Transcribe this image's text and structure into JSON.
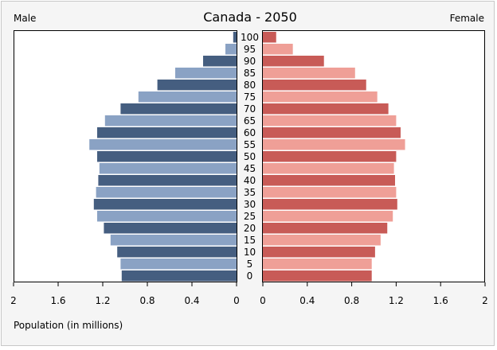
{
  "chart_data": {
    "type": "bar",
    "title": "Canada - 2050",
    "left_label": "Male",
    "right_label": "Female",
    "xlabel": "Population (in millions)",
    "xlim": [
      0,
      2
    ],
    "x_ticks": [
      "2",
      "1.6",
      "1.2",
      "0.8",
      "0.4",
      "0",
      "0",
      "0.4",
      "0.8",
      "1.2",
      "1.6",
      "2"
    ],
    "categories": [
      "100",
      "95",
      "90",
      "85",
      "80",
      "75",
      "70",
      "65",
      "60",
      "55",
      "50",
      "45",
      "40",
      "35",
      "30",
      "25",
      "20",
      "15",
      "10",
      "5",
      "0"
    ],
    "series": [
      {
        "name": "Male",
        "values": [
          0.03,
          0.1,
          0.3,
          0.55,
          0.71,
          0.88,
          1.04,
          1.18,
          1.25,
          1.32,
          1.25,
          1.23,
          1.24,
          1.26,
          1.28,
          1.25,
          1.19,
          1.13,
          1.07,
          1.04,
          1.03
        ],
        "colors": [
          "#455e80",
          "#8aa2c4"
        ]
      },
      {
        "name": "Female",
        "values": [
          0.12,
          0.27,
          0.55,
          0.83,
          0.93,
          1.03,
          1.13,
          1.2,
          1.24,
          1.28,
          1.2,
          1.18,
          1.19,
          1.2,
          1.21,
          1.17,
          1.12,
          1.06,
          1.01,
          0.98,
          0.98
        ],
        "colors": [
          "#c85b57",
          "#ef9f97"
        ]
      }
    ]
  }
}
